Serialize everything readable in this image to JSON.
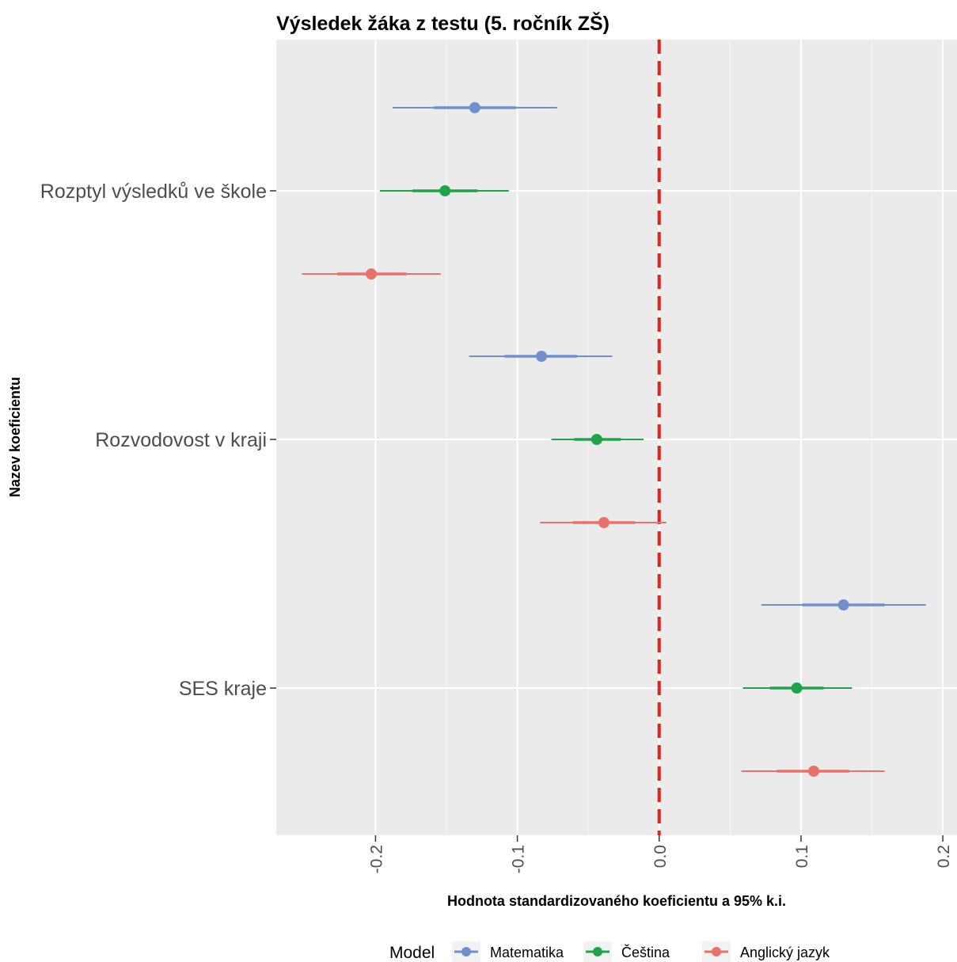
{
  "chart_data": {
    "type": "forest",
    "title": "Výsledek žáka z testu (5. ročník ZŠ)",
    "xlabel": "Hodnota standardizovaného koeficientu a 95% k.i.",
    "ylabel": "Nazev koeficientu",
    "xlim": [
      -0.27,
      0.21
    ],
    "x_ticks": [
      -0.2,
      -0.1,
      0.0,
      0.1,
      0.2
    ],
    "x_tick_labels": [
      "-0.2",
      "-0.1",
      "0.0",
      "0.1",
      "0.2"
    ],
    "reference_line": 0.0,
    "categories": [
      "Rozptyl výsledků ve škole",
      "Rozvodovost v kraji",
      "SES kraje"
    ],
    "legend_title": "Model",
    "legend_position": "bottom",
    "grid": true,
    "series": [
      {
        "name": "Matematika",
        "color": "#6f8fcf",
        "values": [
          {
            "estimate": -0.13,
            "inner": [
              -0.159,
              -0.101
            ],
            "ci": [
              -0.188,
              -0.072
            ]
          },
          {
            "estimate": -0.083,
            "inner": [
              -0.109,
              -0.058
            ],
            "ci": [
              -0.134,
              -0.033
            ]
          },
          {
            "estimate": 0.13,
            "inner": [
              0.101,
              0.159
            ],
            "ci": [
              0.072,
              0.188
            ]
          }
        ]
      },
      {
        "name": "Čeština",
        "color": "#1fa44a",
        "values": [
          {
            "estimate": -0.151,
            "inner": [
              -0.174,
              -0.128
            ],
            "ci": [
              -0.197,
              -0.106
            ]
          },
          {
            "estimate": -0.044,
            "inner": [
              -0.06,
              -0.027
            ],
            "ci": [
              -0.076,
              -0.011
            ]
          },
          {
            "estimate": 0.097,
            "inner": [
              0.078,
              0.116
            ],
            "ci": [
              0.059,
              0.136
            ]
          }
        ]
      },
      {
        "name": "Anglický jazyk",
        "color": "#e8716b",
        "values": [
          {
            "estimate": -0.203,
            "inner": [
              -0.227,
              -0.178
            ],
            "ci": [
              -0.252,
              -0.154
            ]
          },
          {
            "estimate": -0.039,
            "inner": [
              -0.061,
              -0.017
            ],
            "ci": [
              -0.084,
              0.005
            ]
          },
          {
            "estimate": 0.109,
            "inner": [
              0.083,
              0.134
            ],
            "ci": [
              0.058,
              0.159
            ]
          }
        ]
      }
    ]
  }
}
